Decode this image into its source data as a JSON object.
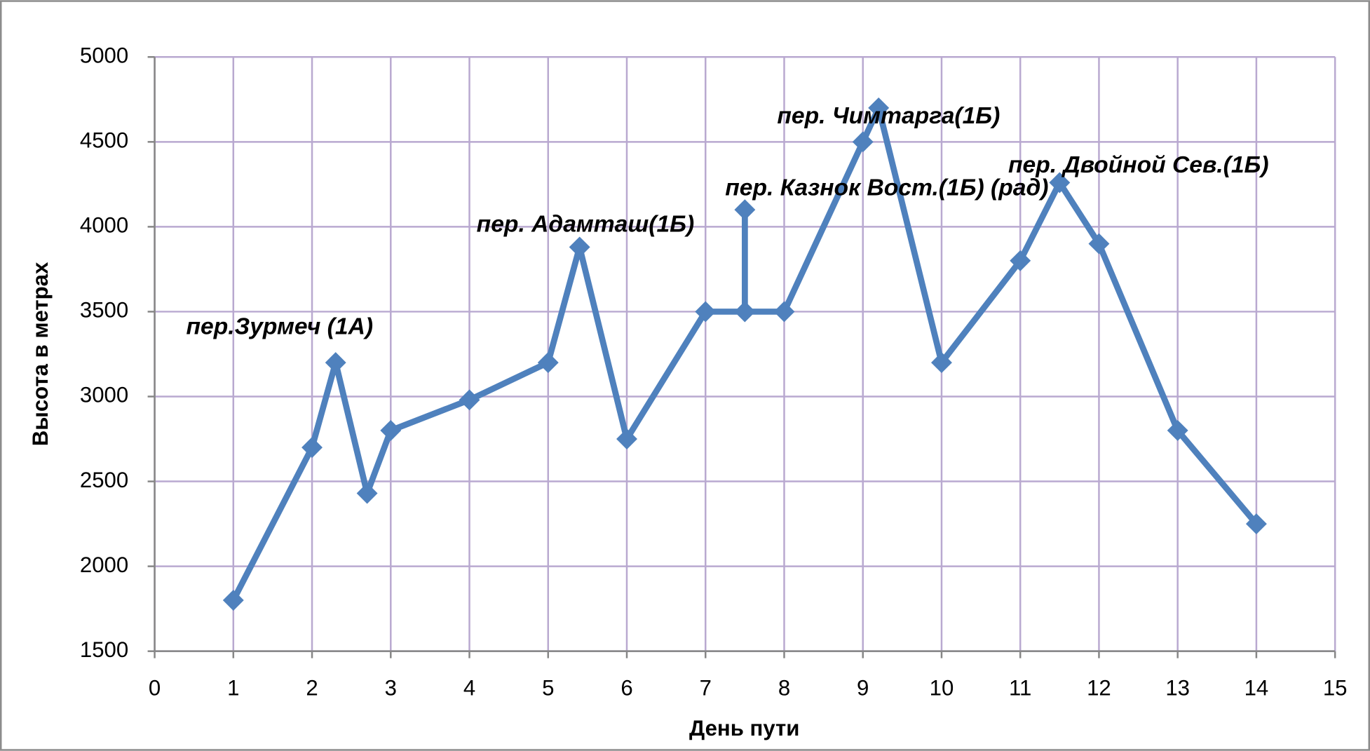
{
  "chart_data": {
    "type": "line",
    "xlabel": "День пути",
    "ylabel": "Высота в метрах",
    "x": [
      1,
      2,
      2.3,
      2.7,
      3,
      4,
      5,
      5.4,
      6,
      7,
      7.5,
      7.5,
      7.5,
      8,
      9,
      9.2,
      10,
      11,
      11.5,
      12,
      13,
      14
    ],
    "series": [
      {
        "color": "#4f81bd",
        "values": [
          1800,
          2700,
          3200,
          2430,
          2800,
          2980,
          3200,
          3880,
          2750,
          3500,
          3500,
          4100,
          3500,
          3500,
          4500,
          4700,
          3200,
          3800,
          4260,
          3900,
          2800,
          2250
        ]
      }
    ],
    "annotations": [
      "пер.Зурмеч (1А)",
      "пер. Адамташ(1Б)",
      "пер. Казнок Вост.(1Б) (рад)",
      "пер. Чимтарга(1Б)",
      "пер. Двойной Сев.(1Б)"
    ],
    "xlim": [
      0,
      15
    ],
    "xticks": [
      0,
      1,
      2,
      3,
      4,
      5,
      6,
      7,
      8,
      9,
      10,
      11,
      12,
      13,
      14,
      15
    ],
    "ylim": [
      1500,
      5000
    ],
    "yticks": [
      1500,
      2000,
      2500,
      3000,
      3500,
      4000,
      4500,
      5000
    ],
    "grid": true,
    "grid_color": "#b9a9d0"
  }
}
